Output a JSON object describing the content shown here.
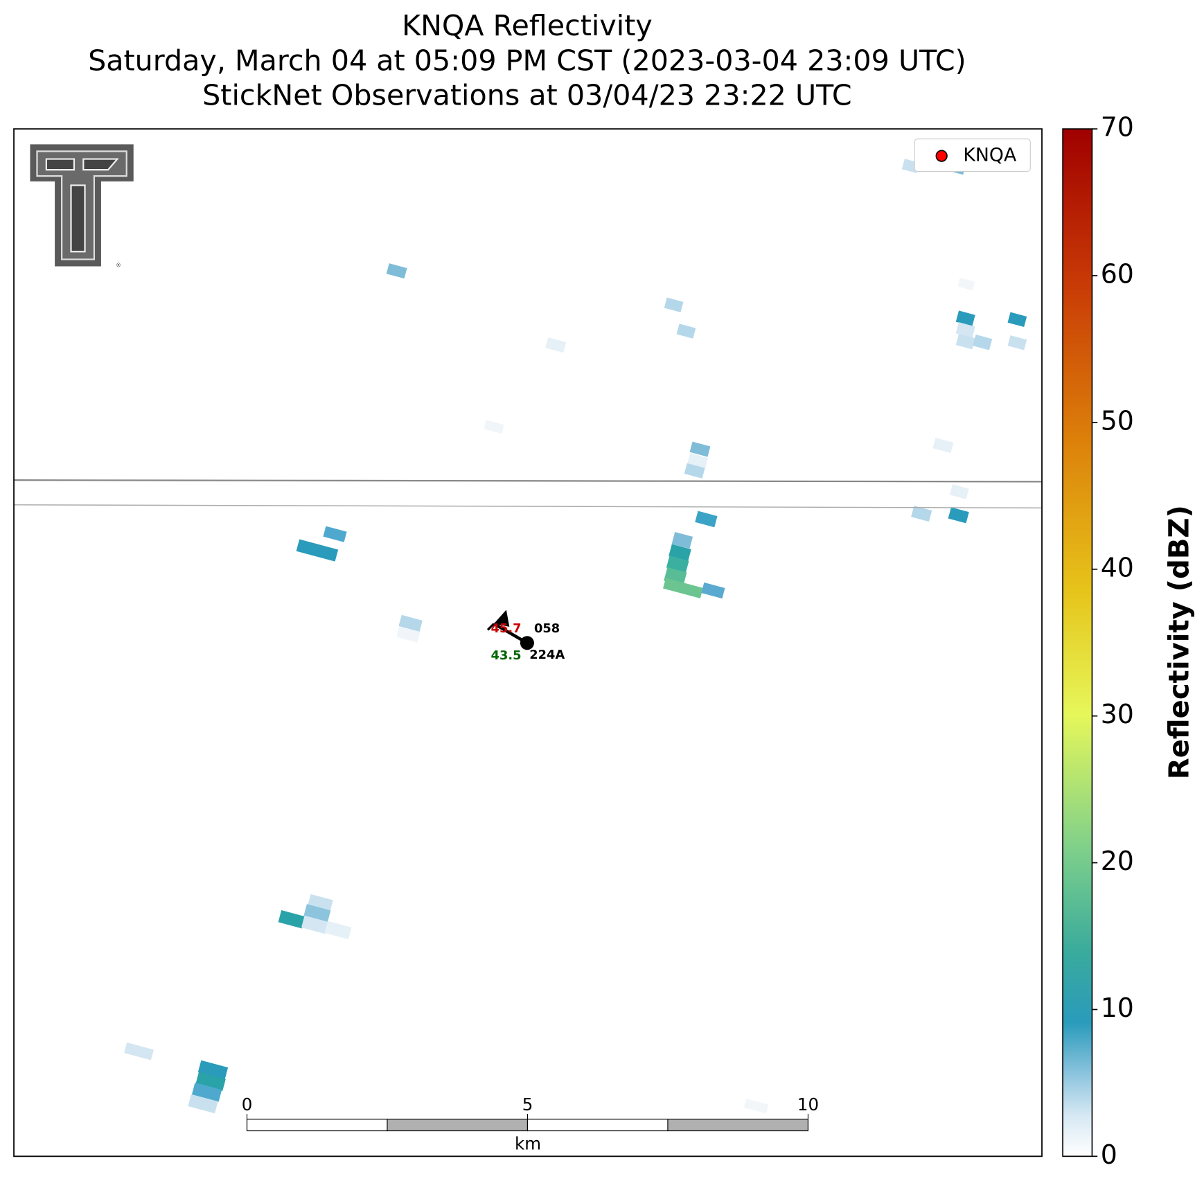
{
  "chart_data": {
    "type": "radar-map",
    "title_lines": [
      "KNQA Reflectivity",
      "Saturday, March 04 at 05:09 PM CST (2023-03-04 23:09 UTC)",
      "StickNet Observations at 03/04/23 23:22 UTC"
    ],
    "legend": {
      "label": "KNQA",
      "color": "#ff0000",
      "corner": "upper right"
    },
    "colorbar": {
      "label": "Reflectivity (dBZ)",
      "lim": [
        0,
        70
      ],
      "ticks": [
        0,
        10,
        20,
        30,
        40,
        50,
        60,
        70
      ]
    },
    "scale_bar": {
      "label": "km",
      "lim": [
        0,
        10
      ],
      "ticks": [
        0,
        5,
        10
      ]
    },
    "station_plot": {
      "temperature": 45.7,
      "dewpoint": 43.5,
      "value": "058",
      "station_id": "224A"
    }
  }
}
